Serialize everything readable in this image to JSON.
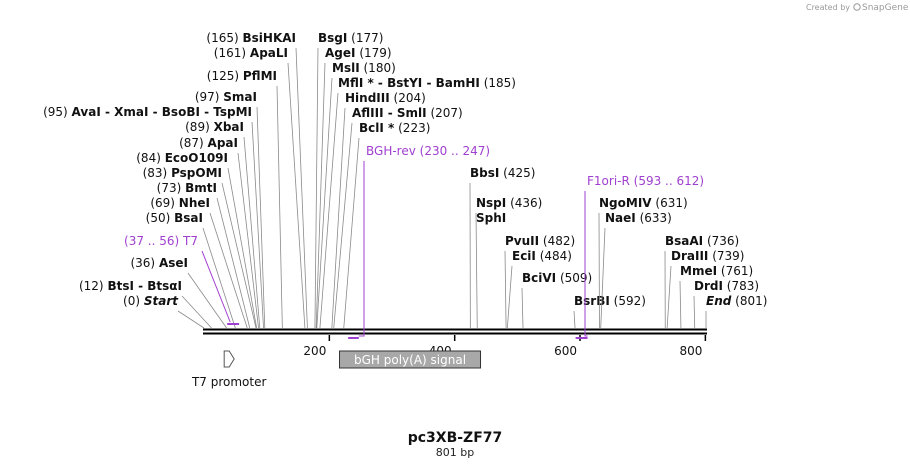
{
  "credit": {
    "text": "Created by",
    "brand": "SnapGene"
  },
  "plasmid": {
    "name": "pc3XB-ZF77",
    "length_label": "801 bp",
    "length": 801
  },
  "colors": {
    "primer": "#a040d0",
    "feature_fill": "#a8a8a8",
    "backbone": "#000000"
  },
  "ticks": [
    {
      "pos": 200,
      "label": "200"
    },
    {
      "pos": 400,
      "label": "400"
    },
    {
      "pos": 600,
      "label": "600"
    },
    {
      "pos": 800,
      "label": "800"
    }
  ],
  "sites": [
    {
      "pos": 0,
      "text": "(0)",
      "name": "Start",
      "italic": true
    },
    {
      "pos": 12,
      "text": "(12)",
      "name": "BtsI  - BtsαI"
    },
    {
      "pos": 36,
      "text": "(36)",
      "name": "AseI"
    },
    {
      "pos": 50,
      "text": "(50)",
      "name": "BsaI"
    },
    {
      "pos": 69,
      "text": "(69)",
      "name": "NheI"
    },
    {
      "pos": 73,
      "text": "(73)",
      "name": "BmtI"
    },
    {
      "pos": 83,
      "text": "(83)",
      "name": "PspOMI"
    },
    {
      "pos": 84,
      "text": "(84)",
      "name": "EcoO109I"
    },
    {
      "pos": 87,
      "text": "(87)",
      "name": "ApaI"
    },
    {
      "pos": 89,
      "text": "(89)",
      "name": "XbaI"
    },
    {
      "pos": 95,
      "text": "(95)",
      "name": "AvaI   - XmaI   - BsoBI  - TspMI"
    },
    {
      "pos": 97,
      "text": "(97)",
      "name": "SmaI"
    },
    {
      "pos": 125,
      "text": "(125)",
      "name": "PflMI"
    },
    {
      "pos": 161,
      "text": "(161)",
      "name": "ApaLI"
    },
    {
      "pos": 165,
      "text": "(165)",
      "name": "BsiHKAI"
    },
    {
      "pos": 177,
      "text": "(177)",
      "name": "BsgI",
      "right": true
    },
    {
      "pos": 179,
      "text": "(179)",
      "name": "AgeI",
      "right": true
    },
    {
      "pos": 180,
      "text": "(180)",
      "name": "MslI",
      "right": true
    },
    {
      "pos": 185,
      "text": "(185)",
      "name": "MflI *  - BstYI  - BamHI",
      "right": true
    },
    {
      "pos": 204,
      "text": "(204)",
      "name": "HindIII",
      "right": true
    },
    {
      "pos": 207,
      "text": "(207)",
      "name": "AflIII  - SmlI",
      "right": true
    },
    {
      "pos": 223,
      "text": "(223)",
      "name": "BclI *",
      "right": true
    },
    {
      "pos": 425,
      "text": "(425)",
      "name": "BbsI",
      "right": true
    },
    {
      "pos": 436,
      "text": "(436)",
      "name": "NspI",
      "right": true
    },
    {
      "pos": 436,
      "text": "",
      "name": "SphI",
      "right": true
    },
    {
      "pos": 482,
      "text": "(482)",
      "name": "PvuII",
      "right": true
    },
    {
      "pos": 484,
      "text": "(484)",
      "name": "EciI",
      "right": true
    },
    {
      "pos": 509,
      "text": "(509)",
      "name": "BciVI",
      "right": true
    },
    {
      "pos": 592,
      "text": "(592)",
      "name": "BsrBI",
      "right": true
    },
    {
      "pos": 631,
      "text": "(631)",
      "name": "NgoMIV",
      "right": true
    },
    {
      "pos": 633,
      "text": "(633)",
      "name": "NaeI",
      "right": true
    },
    {
      "pos": 736,
      "text": "(736)",
      "name": "BsaAI",
      "right": true
    },
    {
      "pos": 739,
      "text": "(739)",
      "name": "DraIII",
      "right": true
    },
    {
      "pos": 761,
      "text": "(761)",
      "name": "MmeI",
      "right": true
    },
    {
      "pos": 783,
      "text": "(783)",
      "name": "DrdI",
      "right": true
    },
    {
      "pos": 801,
      "text": "(801)",
      "name": "End",
      "italic": true,
      "right": true
    }
  ],
  "primers": [
    {
      "name": "T7",
      "range": "(37 .. 56)",
      "start": 37,
      "end": 56,
      "direction": "forward"
    },
    {
      "name": "BGH-rev",
      "range": "(230 .. 247)",
      "start": 230,
      "end": 247,
      "direction": "reverse"
    },
    {
      "name": "F1ori-R",
      "range": "(593 .. 612)",
      "start": 593,
      "end": 612,
      "direction": "reverse"
    }
  ],
  "features": [
    {
      "name": "bGH poly(A) signal",
      "start": 229,
      "end": 453,
      "kind": "box"
    },
    {
      "name": "T7 promoter",
      "start": 37,
      "end": 55,
      "kind": "arrow"
    }
  ]
}
